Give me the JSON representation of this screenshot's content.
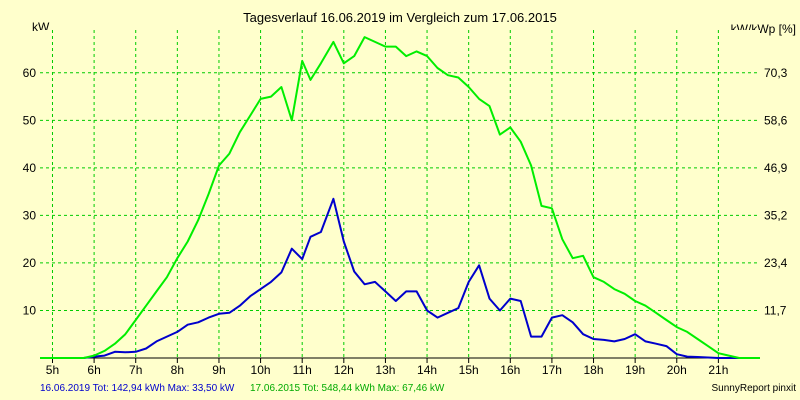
{
  "chart_data": {
    "type": "line",
    "title": "Tagesverlauf 16.06.2019 im Vergleich zum 17.06.2015",
    "ylabel_left": "kW",
    "ylabel_right": "kW/kWp [%]",
    "x_ticks": [
      "5h",
      "6h",
      "7h",
      "8h",
      "9h",
      "10h",
      "11h",
      "12h",
      "13h",
      "14h",
      "15h",
      "16h",
      "17h",
      "18h",
      "19h",
      "20h",
      "21h"
    ],
    "y_ticks_left": [
      "10",
      "20",
      "30",
      "40",
      "50",
      "60"
    ],
    "y_ticks_right": [
      "11,7",
      "23,4",
      "35,2",
      "46,9",
      "58,6",
      "70,3"
    ],
    "xlim": [
      4.7,
      22.0
    ],
    "ylim": [
      0,
      69
    ],
    "grid": true,
    "colors": {
      "background": "#ffffcc",
      "grid": "#00cc00",
      "series_blue": "#0000cc",
      "series_green": "#00ee00"
    },
    "series": [
      {
        "name": "16.06.2019",
        "color": "#0000cc",
        "x": [
          4.7,
          5.5,
          5.75,
          6.0,
          6.25,
          6.5,
          6.75,
          7.0,
          7.25,
          7.5,
          7.75,
          8.0,
          8.25,
          8.5,
          8.75,
          9.0,
          9.25,
          9.5,
          9.75,
          10.0,
          10.25,
          10.5,
          10.75,
          11.0,
          11.2,
          11.45,
          11.75,
          12.0,
          12.25,
          12.5,
          12.75,
          13.0,
          13.25,
          13.5,
          13.75,
          14.0,
          14.25,
          14.5,
          14.75,
          15.0,
          15.25,
          15.5,
          15.75,
          16.0,
          16.25,
          16.5,
          16.75,
          17.0,
          17.25,
          17.5,
          17.75,
          18.0,
          18.25,
          18.5,
          18.75,
          19.0,
          19.25,
          19.5,
          19.75,
          20.0,
          20.25,
          20.5,
          20.75,
          21.0,
          21.25,
          22.0
        ],
        "values": [
          0,
          0,
          0,
          0.3,
          0.5,
          1.3,
          1.2,
          1.3,
          2.0,
          3.5,
          4.5,
          5.5,
          7.0,
          7.5,
          8.5,
          9.3,
          9.5,
          11.0,
          13.0,
          14.5,
          16.0,
          18.0,
          23.0,
          20.8,
          25.5,
          26.5,
          33.5,
          24.5,
          18.2,
          15.5,
          16.0,
          14.0,
          12.0,
          14.0,
          14.0,
          10.0,
          8.5,
          9.5,
          10.5,
          16.0,
          19.5,
          12.5,
          10.0,
          12.5,
          12.0,
          4.5,
          4.5,
          8.5,
          9.0,
          7.5,
          5.0,
          4.0,
          3.8,
          3.5,
          4.0,
          5.0,
          3.5,
          3.0,
          2.5,
          0.8,
          0.3,
          0.2,
          0.1,
          0,
          0,
          0
        ]
      },
      {
        "name": "17.06.2015",
        "color": "#00ee00",
        "x": [
          4.7,
          5.5,
          5.75,
          6.0,
          6.25,
          6.5,
          6.75,
          7.0,
          7.25,
          7.5,
          7.75,
          8.0,
          8.25,
          8.5,
          8.75,
          9.0,
          9.25,
          9.5,
          9.75,
          10.0,
          10.25,
          10.5,
          10.75,
          11.0,
          11.2,
          11.45,
          11.75,
          12.0,
          12.25,
          12.5,
          12.75,
          13.0,
          13.25,
          13.5,
          13.75,
          14.0,
          14.25,
          14.5,
          14.75,
          15.0,
          15.25,
          15.5,
          15.75,
          16.0,
          16.25,
          16.5,
          16.75,
          17.0,
          17.25,
          17.5,
          17.75,
          18.0,
          18.25,
          18.5,
          18.75,
          19.0,
          19.25,
          19.5,
          19.75,
          20.0,
          20.25,
          20.5,
          20.75,
          21.0,
          21.25,
          21.5,
          22.0
        ],
        "values": [
          0,
          0,
          0,
          0.5,
          1.5,
          3.0,
          5.0,
          8.0,
          11.0,
          14.0,
          17.0,
          21.0,
          24.5,
          29.0,
          34.5,
          40.5,
          43.0,
          47.5,
          51.0,
          54.5,
          55.0,
          57.0,
          50.0,
          62.5,
          58.5,
          62.0,
          66.5,
          62.0,
          63.5,
          67.5,
          66.5,
          65.5,
          65.5,
          63.5,
          64.5,
          63.5,
          61.0,
          59.5,
          59.0,
          57.0,
          54.5,
          53.0,
          47.0,
          48.5,
          45.5,
          40.5,
          32.0,
          31.5,
          25.0,
          21.0,
          21.5,
          17.0,
          16.0,
          14.5,
          13.5,
          12.0,
          11.0,
          9.5,
          8.0,
          6.5,
          5.5,
          4.0,
          2.5,
          1.0,
          0.5,
          0,
          0
        ]
      }
    ]
  },
  "footer": {
    "series1_summary": "16.06.2019 Tot: 142,94 kWh Max: 33,50 kW",
    "series2_summary": "17.06.2015 Tot: 548,44 kWh Max: 67,46 kW",
    "source": "SunnyReport pinxit"
  }
}
